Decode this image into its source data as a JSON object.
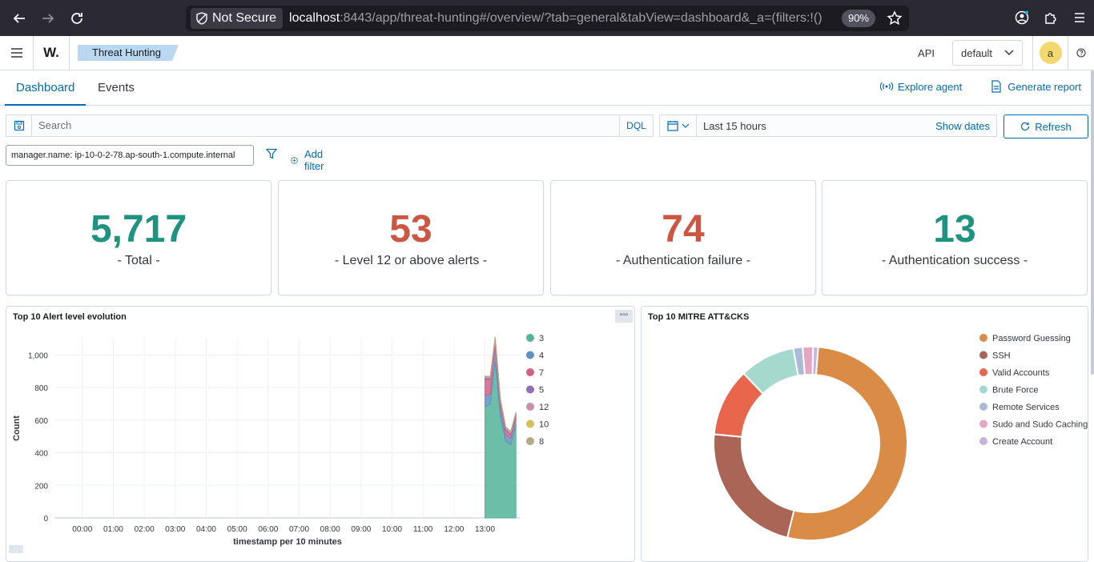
{
  "browser": {
    "not_secure_label": "Not Secure",
    "url_host": "localhost",
    "url_rest": ":8443/app/threat-hunting#/overview/?tab=general&tabView=dashboard&_a=(filters:!()",
    "zoom": "90%"
  },
  "header": {
    "logo": "W.",
    "breadcrumb": "Threat Hunting",
    "api_label": "API",
    "tenant": "default",
    "avatar_initial": "a"
  },
  "tabs": {
    "items": [
      {
        "label": "Dashboard",
        "active": true
      },
      {
        "label": "Events",
        "active": false
      }
    ],
    "explore_agent": "Explore agent",
    "generate_report": "Generate report"
  },
  "search": {
    "placeholder": "Search",
    "dql": "DQL",
    "date_range": "Last 15 hours",
    "show_dates": "Show dates",
    "refresh": "Refresh"
  },
  "filters": {
    "pill": "manager.name: ip-10-0-2-78.ap-south-1.compute.internal",
    "add_filter": "Add filter"
  },
  "stats": [
    {
      "value": "5,717",
      "label": "- Total -",
      "color": "#209280"
    },
    {
      "value": "53",
      "label": "- Level 12 or above alerts -",
      "color": "#cc5642"
    },
    {
      "value": "74",
      "label": "- Authentication failure -",
      "color": "#cc5642"
    },
    {
      "value": "13",
      "label": "- Authentication success -",
      "color": "#209280"
    }
  ],
  "chart_data": [
    {
      "type": "area",
      "title": "Top 10 Alert level evolution",
      "xlabel": "timestamp per 10 minutes",
      "ylabel": "Count",
      "ylim": [
        0,
        1100
      ],
      "yticks": [
        0,
        200,
        400,
        600,
        800,
        "1,000"
      ],
      "x_tick_labels": [
        "00:00",
        "01:00",
        "02:00",
        "03:00",
        "04:00",
        "05:00",
        "06:00",
        "07:00",
        "08:00",
        "09:00",
        "10:00",
        "11:00",
        "12:00",
        "13:00"
      ],
      "x_hours": [
        13.0,
        13.17,
        13.33,
        13.5,
        13.67,
        13.83,
        14.0
      ],
      "series": [
        {
          "name": "3",
          "color": "#54b399",
          "values": [
            680,
            700,
            960,
            620,
            470,
            450,
            570
          ]
        },
        {
          "name": "4",
          "color": "#6092c0",
          "values": [
            70,
            60,
            90,
            60,
            40,
            40,
            40
          ]
        },
        {
          "name": "7",
          "color": "#d36086",
          "values": [
            100,
            90,
            40,
            30,
            30,
            20,
            20
          ]
        },
        {
          "name": "5",
          "color": "#9170b8",
          "values": [
            10,
            10,
            10,
            10,
            10,
            10,
            10
          ]
        },
        {
          "name": "12",
          "color": "#ca8eae",
          "values": [
            5,
            5,
            5,
            5,
            5,
            5,
            5
          ]
        },
        {
          "name": "10",
          "color": "#d6bf57",
          "values": [
            3,
            3,
            3,
            3,
            3,
            3,
            3
          ]
        },
        {
          "name": "8",
          "color": "#b9a888",
          "values": [
            2,
            2,
            2,
            2,
            2,
            2,
            2
          ]
        }
      ],
      "grid": true,
      "legend": "right"
    },
    {
      "type": "pie",
      "title": "Top 10 MITRE ATT&CKS",
      "donut": true,
      "categories": [
        "Password Guessing",
        "SSH",
        "Valid Accounts",
        "Brute Force",
        "Remote Services",
        "Sudo and Sudo Caching",
        "Create Account"
      ],
      "values": [
        51,
        22,
        11,
        9,
        1.5,
        1.7,
        0.8
      ],
      "colors": [
        "#da8b45",
        "#aa6556",
        "#e7664c",
        "#a6d9cd",
        "#aabbd9",
        "#e4a6c1",
        "#c7b3db"
      ],
      "legend": "top-right"
    }
  ]
}
